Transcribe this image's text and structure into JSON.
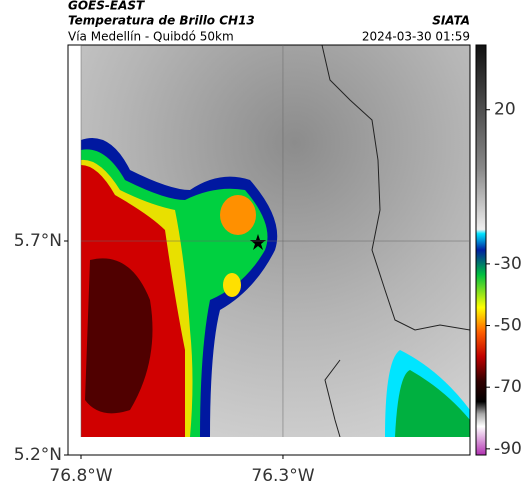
{
  "header": {
    "source": "GOES-EAST",
    "title": "Temperatura de Brillo CH13",
    "brand": "SIATA",
    "route": "Vía Medellín - Quibdó 50km",
    "datetime": "2024-03-30 01:59"
  },
  "map": {
    "xlim": [
      -76.8,
      -75.837
    ],
    "ylim": [
      5.2,
      6.158
    ],
    "xticks": [
      {
        "value": -76.8,
        "label": "76.8°W"
      },
      {
        "value": -76.3,
        "label": "76.3°W"
      }
    ],
    "yticks": [
      {
        "value": 5.7,
        "label": "5.7°N"
      },
      {
        "value": 5.2,
        "label": "5.2°N"
      }
    ]
  },
  "colorbar": {
    "lim": [
      -92,
      41
    ],
    "ticks": [
      20,
      -30,
      -50,
      -70,
      -90
    ]
  }
}
